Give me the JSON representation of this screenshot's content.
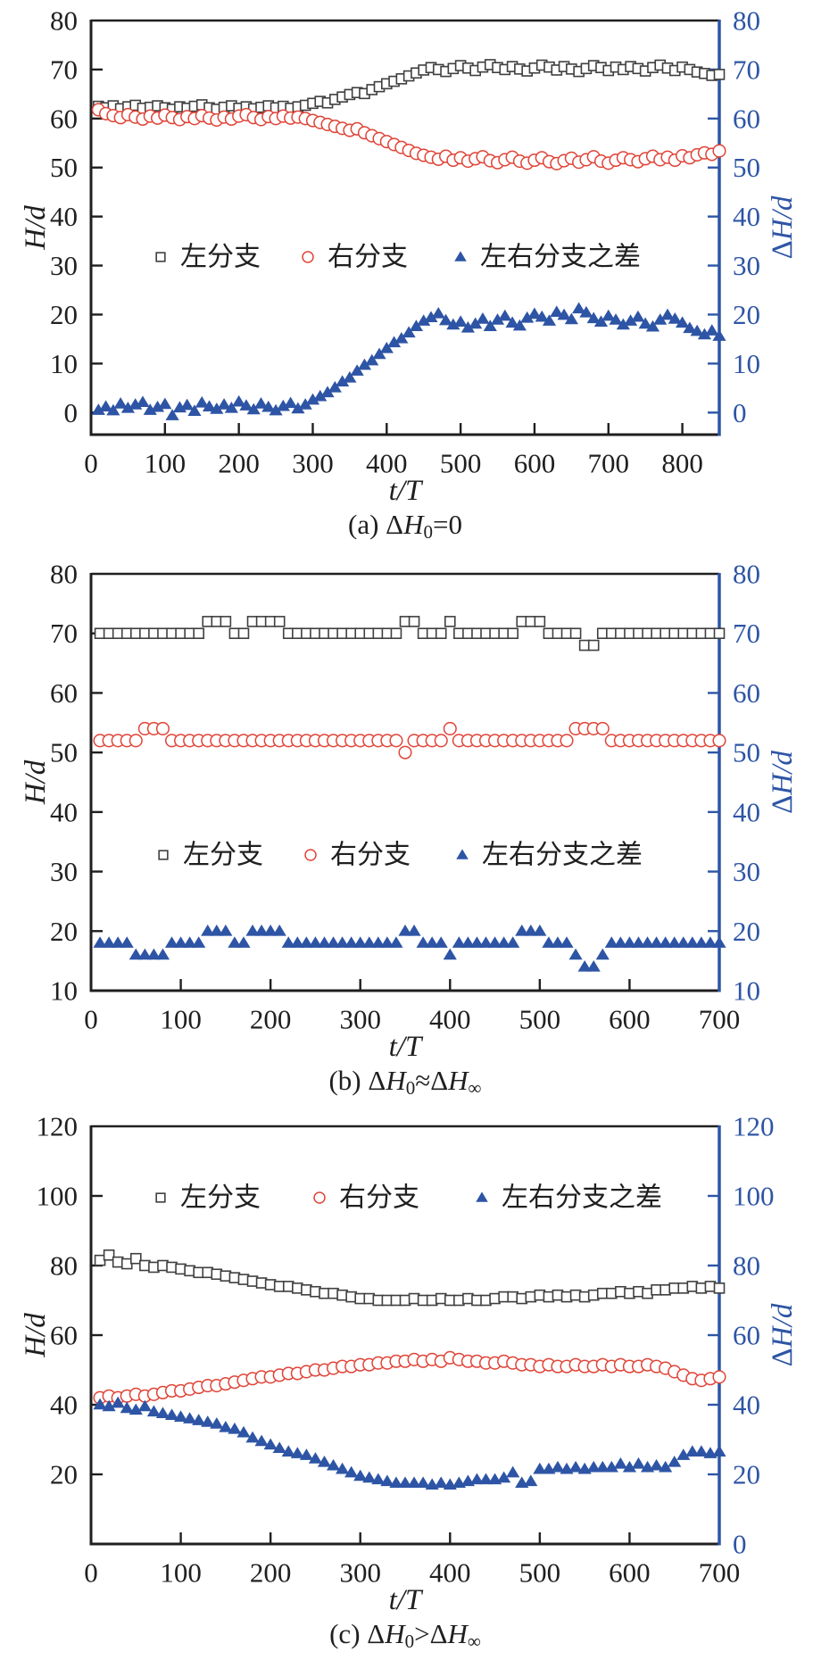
{
  "figure": {
    "background": "#ffffff",
    "colors": {
      "axis": "#1f1f1f",
      "text": "#1f1f1f",
      "left_marker": "#3f3f3f",
      "right_marker": "#e04438",
      "diff_marker": "#2e55a5",
      "right_axis": "#2e55a5"
    },
    "legend": {
      "left": "左分支",
      "right": "右分支",
      "diff": "左右分支之差"
    }
  },
  "chart_data": [
    {
      "type": "scatter",
      "panel": "a",
      "caption_segments": [
        {
          "t": "(a) Δ"
        },
        {
          "t": "H",
          "i": true
        },
        {
          "t": "0",
          "sub": true
        },
        {
          "t": "=0"
        }
      ],
      "xlabel_segments": [
        {
          "t": "t/T",
          "i": true
        }
      ],
      "ylabel_left_segments": [
        {
          "t": "H/d",
          "i": true
        }
      ],
      "ylabel_right_segments": [
        {
          "t": "Δ"
        },
        {
          "t": "H/d",
          "i": true
        }
      ],
      "xlim": [
        0,
        850
      ],
      "ylim": [
        -4.5,
        80
      ],
      "grid": false,
      "legend_position": "inside-middle",
      "xticks": [
        0,
        100,
        200,
        300,
        400,
        500,
        600,
        700,
        800
      ],
      "yticks_left": [
        0,
        10,
        20,
        30,
        40,
        50,
        60,
        70,
        80
      ],
      "yticks_right": [
        0,
        10,
        20,
        30,
        40,
        50,
        60,
        70,
        80
      ],
      "x": [
        10,
        20,
        30,
        40,
        50,
        60,
        70,
        80,
        90,
        100,
        110,
        120,
        130,
        140,
        150,
        160,
        170,
        180,
        190,
        200,
        210,
        220,
        230,
        240,
        250,
        260,
        270,
        280,
        290,
        300,
        310,
        320,
        330,
        340,
        350,
        360,
        370,
        380,
        390,
        400,
        410,
        420,
        430,
        440,
        450,
        460,
        470,
        480,
        490,
        500,
        510,
        520,
        530,
        540,
        550,
        560,
        570,
        580,
        590,
        600,
        610,
        620,
        630,
        640,
        650,
        660,
        670,
        680,
        690,
        700,
        710,
        720,
        730,
        740,
        750,
        760,
        770,
        780,
        790,
        800,
        810,
        820,
        830,
        840,
        850
      ],
      "series": [
        {
          "name": "左分支",
          "marker": "square",
          "values": [
            62.5,
            62.2,
            62.6,
            62.0,
            62.4,
            62.7,
            62.1,
            62.3,
            62.6,
            62.2,
            61.9,
            62.4,
            62.1,
            62.5,
            62.8,
            62.2,
            61.9,
            62.3,
            62.6,
            62.1,
            62.4,
            62.0,
            62.3,
            62.6,
            62.2,
            62.5,
            62.1,
            62.4,
            62.7,
            63.1,
            63.5,
            63.2,
            63.9,
            64.4,
            64.9,
            65.3,
            65.1,
            65.9,
            66.5,
            67.1,
            67.6,
            68.1,
            68.7,
            69.3,
            69.9,
            70.4,
            70.0,
            69.6,
            70.2,
            70.8,
            70.3,
            69.8,
            70.5,
            71.0,
            70.4,
            70.0,
            70.6,
            70.1,
            69.7,
            70.3,
            70.9,
            70.5,
            69.9,
            70.6,
            70.1,
            69.6,
            70.2,
            70.8,
            70.4,
            69.8,
            70.5,
            70.0,
            70.6,
            70.2,
            69.7,
            70.4,
            70.9,
            70.3,
            69.8,
            70.5,
            70.0,
            69.5,
            69.2,
            68.8,
            69.0
          ]
        },
        {
          "name": "右分支",
          "marker": "circle",
          "values": [
            61.8,
            61.0,
            60.6,
            60.2,
            60.8,
            60.3,
            59.9,
            60.5,
            60.1,
            60.7,
            60.2,
            59.8,
            60.4,
            60.0,
            60.6,
            60.1,
            59.7,
            60.3,
            59.9,
            60.5,
            60.8,
            60.2,
            59.8,
            60.4,
            60.0,
            60.5,
            60.1,
            60.3,
            60.0,
            59.6,
            59.2,
            58.8,
            58.4,
            58.0,
            57.6,
            57.9,
            57.1,
            56.5,
            55.9,
            55.3,
            54.7,
            54.1,
            53.5,
            52.9,
            52.5,
            52.1,
            51.7,
            52.3,
            51.5,
            52.0,
            51.3,
            51.8,
            52.2,
            51.4,
            51.0,
            51.6,
            52.1,
            51.3,
            50.9,
            51.5,
            52.0,
            51.2,
            50.8,
            51.4,
            51.9,
            51.1,
            51.6,
            52.2,
            51.3,
            50.9,
            51.5,
            52.0,
            51.6,
            51.2,
            51.8,
            52.3,
            51.6,
            52.1,
            51.5,
            52.4,
            52.0,
            52.6,
            53.0,
            52.7,
            53.4
          ]
        },
        {
          "name": "左右分支之差",
          "marker": "triangle",
          "values": [
            0.5,
            1.2,
            0.4,
            1.8,
            0.9,
            1.6,
            2.1,
            0.5,
            1.1,
            1.7,
            -0.6,
            1.0,
            1.5,
            0.3,
            2.0,
            1.2,
            0.7,
            1.6,
            0.9,
            2.2,
            1.4,
            0.6,
            1.8,
            1.1,
            0.4,
            1.3,
            1.9,
            0.8,
            1.6,
            2.6,
            3.3,
            4.1,
            5.1,
            6.3,
            7.1,
            8.5,
            9.7,
            10.6,
            11.9,
            13.1,
            14.3,
            15.1,
            16.3,
            17.6,
            18.7,
            19.4,
            20.2,
            18.8,
            17.9,
            18.5,
            17.3,
            18.1,
            19.1,
            17.6,
            18.9,
            19.7,
            18.3,
            17.7,
            19.3,
            20.1,
            19.5,
            18.7,
            20.5,
            19.9,
            19.0,
            21.2,
            20.4,
            19.2,
            18.5,
            19.7,
            18.9,
            17.9,
            18.7,
            19.5,
            18.1,
            17.5,
            18.9,
            19.9,
            19.1,
            18.3,
            17.2,
            16.6,
            15.9,
            16.7,
            15.6
          ]
        }
      ]
    },
    {
      "type": "scatter",
      "panel": "b",
      "caption_segments": [
        {
          "t": "(b) Δ"
        },
        {
          "t": "H",
          "i": true
        },
        {
          "t": "0",
          "sub": true
        },
        {
          "t": "≈Δ"
        },
        {
          "t": "H",
          "i": true
        },
        {
          "t": "∞",
          "sub": true
        }
      ],
      "xlabel_segments": [
        {
          "t": "t/T",
          "i": true
        }
      ],
      "ylabel_left_segments": [
        {
          "t": "H/d",
          "i": true
        }
      ],
      "ylabel_right_segments": [
        {
          "t": "Δ"
        },
        {
          "t": "H/d",
          "i": true
        }
      ],
      "xlim": [
        0,
        700
      ],
      "ylim": [
        10,
        80
      ],
      "grid": false,
      "legend_position": "inside-middle",
      "xticks": [
        0,
        100,
        200,
        300,
        400,
        500,
        600,
        700
      ],
      "yticks_left": [
        10,
        20,
        30,
        40,
        50,
        60,
        70,
        80
      ],
      "yticks_right": [
        10,
        20,
        30,
        40,
        50,
        60,
        70,
        80
      ],
      "x": [
        10,
        20,
        30,
        40,
        50,
        60,
        70,
        80,
        90,
        100,
        110,
        120,
        130,
        140,
        150,
        160,
        170,
        180,
        190,
        200,
        210,
        220,
        230,
        240,
        250,
        260,
        270,
        280,
        290,
        300,
        310,
        320,
        330,
        340,
        350,
        360,
        370,
        380,
        390,
        400,
        410,
        420,
        430,
        440,
        450,
        460,
        470,
        480,
        490,
        500,
        510,
        520,
        530,
        540,
        550,
        560,
        570,
        580,
        590,
        600,
        610,
        620,
        630,
        640,
        650,
        660,
        670,
        680,
        690,
        700
      ],
      "series": [
        {
          "name": "左分支",
          "marker": "square",
          "values": [
            70,
            70,
            70,
            70,
            70,
            70,
            70,
            70,
            70,
            70,
            70,
            70,
            72,
            72,
            72,
            70,
            70,
            72,
            72,
            72,
            72,
            70,
            70,
            70,
            70,
            70,
            70,
            70,
            70,
            70,
            70,
            70,
            70,
            70,
            72,
            72,
            70,
            70,
            70,
            72,
            70,
            70,
            70,
            70,
            70,
            70,
            70,
            72,
            72,
            72,
            70,
            70,
            70,
            70,
            68,
            68,
            70,
            70,
            70,
            70,
            70,
            70,
            70,
            70,
            70,
            70,
            70,
            70,
            70,
            70
          ]
        },
        {
          "name": "右分支",
          "marker": "circle",
          "values": [
            52,
            52,
            52,
            52,
            52,
            54,
            54,
            54,
            52,
            52,
            52,
            52,
            52,
            52,
            52,
            52,
            52,
            52,
            52,
            52,
            52,
            52,
            52,
            52,
            52,
            52,
            52,
            52,
            52,
            52,
            52,
            52,
            52,
            52,
            50,
            52,
            52,
            52,
            52,
            54,
            52,
            52,
            52,
            52,
            52,
            52,
            52,
            52,
            52,
            52,
            52,
            52,
            52,
            54,
            54,
            54,
            54,
            52,
            52,
            52,
            52,
            52,
            52,
            52,
            52,
            52,
            52,
            52,
            52,
            52
          ]
        },
        {
          "name": "左右分支之差",
          "marker": "triangle",
          "values": [
            18,
            18,
            18,
            18,
            16,
            16,
            16,
            16,
            18,
            18,
            18,
            18,
            20,
            20,
            20,
            18,
            18,
            20,
            20,
            20,
            20,
            18,
            18,
            18,
            18,
            18,
            18,
            18,
            18,
            18,
            18,
            18,
            18,
            18,
            20,
            20,
            18,
            18,
            18,
            16,
            18,
            18,
            18,
            18,
            18,
            18,
            18,
            20,
            20,
            20,
            18,
            18,
            18,
            16,
            14,
            14,
            16,
            18,
            18,
            18,
            18,
            18,
            18,
            18,
            18,
            18,
            18,
            18,
            18,
            18
          ]
        }
      ]
    },
    {
      "type": "scatter",
      "panel": "c",
      "caption_segments": [
        {
          "t": "(c) Δ"
        },
        {
          "t": "H",
          "i": true
        },
        {
          "t": "0",
          "sub": true
        },
        {
          "t": ">Δ"
        },
        {
          "t": "H",
          "i": true
        },
        {
          "t": "∞",
          "sub": true
        }
      ],
      "xlabel_segments": [
        {
          "t": "t/T",
          "i": true
        }
      ],
      "ylabel_left_segments": [
        {
          "t": "H/d",
          "i": true
        }
      ],
      "ylabel_right_segments": [
        {
          "t": "Δ"
        },
        {
          "t": "H/d",
          "i": true
        }
      ],
      "xlim": [
        0,
        700
      ],
      "ylim": [
        0,
        120
      ],
      "grid": false,
      "legend_position": "inside-top",
      "xticks": [
        0,
        100,
        200,
        300,
        400,
        500,
        600,
        700
      ],
      "yticks_left": [
        20,
        40,
        60,
        80,
        100,
        120
      ],
      "yticks_right": [
        0,
        20,
        40,
        60,
        80,
        100,
        120
      ],
      "x": [
        10,
        20,
        30,
        40,
        50,
        60,
        70,
        80,
        90,
        100,
        110,
        120,
        130,
        140,
        150,
        160,
        170,
        180,
        190,
        200,
        210,
        220,
        230,
        240,
        250,
        260,
        270,
        280,
        290,
        300,
        310,
        320,
        330,
        340,
        350,
        360,
        370,
        380,
        390,
        400,
        410,
        420,
        430,
        440,
        450,
        460,
        470,
        480,
        490,
        500,
        510,
        520,
        530,
        540,
        550,
        560,
        570,
        580,
        590,
        600,
        610,
        620,
        630,
        640,
        650,
        660,
        670,
        680,
        690,
        700
      ],
      "series": [
        {
          "name": "左分支",
          "marker": "square",
          "values": [
            81.5,
            83.0,
            81.0,
            80.5,
            82.0,
            80.0,
            79.5,
            80.0,
            79.5,
            79.0,
            78.5,
            78.0,
            78.0,
            77.5,
            77.0,
            76.5,
            76.0,
            75.5,
            75.0,
            74.5,
            74.0,
            74.0,
            73.5,
            73.0,
            72.5,
            72.0,
            72.0,
            71.5,
            71.0,
            70.5,
            70.5,
            70.0,
            70.0,
            70.0,
            70.0,
            70.5,
            70.0,
            70.0,
            70.5,
            70.0,
            70.0,
            70.5,
            70.0,
            70.0,
            70.5,
            71.0,
            71.0,
            70.5,
            71.0,
            71.5,
            71.0,
            71.5,
            71.0,
            71.5,
            71.0,
            71.5,
            72.0,
            72.0,
            72.5,
            72.0,
            72.5,
            72.0,
            73.0,
            73.0,
            73.5,
            73.5,
            74.0,
            73.5,
            74.0,
            73.5
          ]
        },
        {
          "name": "右分支",
          "marker": "circle",
          "values": [
            42.0,
            42.5,
            42.0,
            42.5,
            43.0,
            42.5,
            43.0,
            43.5,
            44.0,
            44.0,
            44.5,
            45.0,
            45.5,
            45.5,
            46.0,
            46.5,
            47.0,
            47.5,
            48.0,
            48.0,
            48.5,
            49.0,
            49.0,
            49.5,
            50.0,
            50.0,
            50.5,
            51.0,
            51.0,
            51.5,
            51.5,
            52.0,
            52.0,
            52.5,
            52.5,
            53.0,
            52.5,
            53.0,
            52.5,
            53.5,
            53.0,
            52.5,
            52.5,
            52.0,
            52.0,
            52.5,
            52.0,
            51.5,
            51.5,
            51.0,
            51.5,
            51.0,
            51.0,
            51.5,
            51.0,
            51.0,
            51.5,
            51.0,
            51.5,
            51.0,
            51.0,
            51.5,
            51.0,
            50.5,
            49.5,
            48.5,
            47.5,
            47.0,
            47.5,
            48.0
          ]
        },
        {
          "name": "左右分支之差",
          "marker": "triangle",
          "values": [
            40.0,
            39.5,
            40.5,
            39.0,
            38.5,
            39.5,
            38.0,
            37.5,
            37.0,
            36.5,
            36.0,
            35.5,
            35.0,
            34.5,
            33.5,
            33.0,
            32.0,
            30.5,
            29.5,
            28.5,
            27.5,
            26.5,
            26.0,
            25.5,
            24.5,
            23.5,
            22.5,
            21.5,
            20.5,
            19.5,
            19.0,
            18.5,
            18.0,
            17.5,
            17.5,
            17.5,
            17.5,
            17.0,
            17.5,
            17.0,
            17.5,
            18.0,
            18.5,
            18.5,
            18.5,
            19.0,
            20.5,
            17.5,
            18.0,
            21.5,
            21.5,
            22.0,
            21.5,
            22.0,
            21.5,
            22.0,
            22.0,
            22.0,
            23.0,
            22.0,
            23.0,
            22.0,
            22.5,
            22.0,
            23.5,
            25.5,
            26.5,
            26.5,
            26.0,
            26.5
          ]
        }
      ]
    }
  ]
}
